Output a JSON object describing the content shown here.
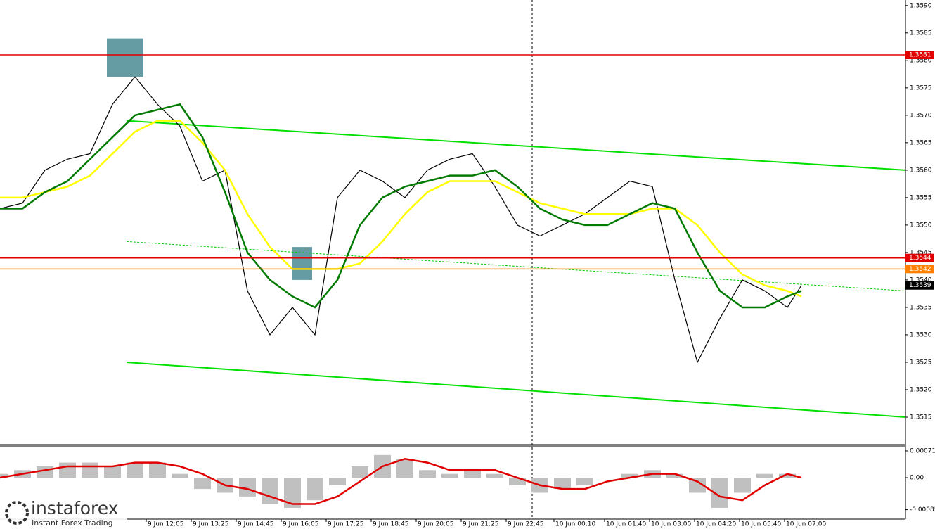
{
  "chart_data": [
    {
      "type": "line",
      "xlim": [
        0,
        322
      ],
      "ylim": [
        1.351,
        1.3591
      ],
      "xticks": [
        {
          "value": 52,
          "label": "9 Jun 12:05"
        },
        {
          "value": 68,
          "label": "9 Jun 13:25"
        },
        {
          "value": 84,
          "label": "9 Jun 14:45"
        },
        {
          "value": 100,
          "label": "9 Jun 16:05"
        },
        {
          "value": 116,
          "label": "9 Jun 17:25"
        },
        {
          "value": 132,
          "label": "9 Jun 18:45"
        },
        {
          "value": 148,
          "label": "9 Jun 20:05"
        },
        {
          "value": 164,
          "label": "9 Jun 21:25"
        },
        {
          "value": 180,
          "label": "9 Jun 22:45"
        },
        {
          "value": 197,
          "label": "10 Jun 00:10"
        },
        {
          "value": 215,
          "label": "10 Jun 01:40"
        },
        {
          "value": 231,
          "label": "10 Jun 03:00"
        },
        {
          "value": 247,
          "label": "10 Jun 04:20"
        },
        {
          "value": 263,
          "label": "10 Jun 05:40"
        },
        {
          "value": 279,
          "label": "10 Jun 07:00"
        }
      ],
      "yticks": [
        1.3515,
        {
          "value": 1.352,
          "label": "1.3520"
        },
        1.3525,
        {
          "value": 1.353,
          "label": "1.3530"
        },
        1.3535,
        {
          "value": 1.354,
          "label": "1.3540"
        },
        1.3545,
        {
          "value": 1.355,
          "label": "1.3550"
        },
        1.3555,
        {
          "value": 1.356,
          "label": "1.3560"
        },
        1.3565,
        {
          "value": 1.357,
          "label": "1.3570"
        },
        1.3575,
        {
          "value": 1.358,
          "label": "1.3580"
        },
        1.3585,
        {
          "value": 1.359,
          "label": "1.3590"
        }
      ],
      "x": [
        0,
        8,
        16,
        24,
        32,
        40,
        48,
        56,
        64,
        72,
        80,
        88,
        96,
        104,
        112,
        120,
        128,
        136,
        144,
        152,
        160,
        168,
        176,
        184,
        192,
        200,
        208,
        216,
        224,
        232,
        240,
        248,
        256,
        264,
        272,
        280,
        285
      ],
      "series": [
        {
          "color": "#000000",
          "values": [
            1.3553,
            1.3554,
            1.356,
            1.3562,
            1.3563,
            1.3572,
            1.3577,
            1.3572,
            1.3568,
            1.3558,
            1.356,
            1.3538,
            1.353,
            1.3535,
            1.353,
            1.3555,
            1.356,
            1.3558,
            1.3555,
            1.356,
            1.3562,
            1.3563,
            1.3557,
            1.355,
            1.3548,
            1.355,
            1.3552,
            1.3555,
            1.3558,
            1.3557,
            1.354,
            1.3525,
            1.3533,
            1.354,
            1.3538,
            1.3535,
            1.3539
          ]
        },
        {
          "color": "#ffff00",
          "values": [
            1.3555,
            1.3555,
            1.3556,
            1.3557,
            1.3559,
            1.3563,
            1.3567,
            1.3569,
            1.3569,
            1.3565,
            1.356,
            1.3552,
            1.3546,
            1.3542,
            1.3542,
            1.3542,
            1.3543,
            1.3547,
            1.3552,
            1.3556,
            1.3558,
            1.3558,
            1.3558,
            1.3556,
            1.3554,
            1.3553,
            1.3552,
            1.3552,
            1.3552,
            1.3553,
            1.3553,
            1.355,
            1.3545,
            1.3541,
            1.3539,
            1.3538,
            1.3537
          ]
        },
        {
          "color": "#007a00",
          "values": [
            1.3553,
            1.3553,
            1.3556,
            1.3558,
            1.3562,
            1.3566,
            1.357,
            1.3571,
            1.3572,
            1.3566,
            1.3556,
            1.3545,
            1.354,
            1.3537,
            1.3535,
            1.354,
            1.355,
            1.3555,
            1.3557,
            1.3558,
            1.3559,
            1.3559,
            1.356,
            1.3557,
            1.3553,
            1.3551,
            1.355,
            1.355,
            1.3552,
            1.3554,
            1.3553,
            1.3545,
            1.3538,
            1.3535,
            1.3535,
            1.3537,
            1.3538
          ]
        }
      ],
      "levels": [
        {
          "value": 1.3581,
          "color": "#e00000"
        },
        {
          "value": 1.3544,
          "color": "#e00000"
        },
        {
          "value": 1.3542,
          "color": "#ff8000"
        },
        {
          "value": 1.3539,
          "color": "#000000"
        }
      ],
      "trendlines": [
        {
          "x": [
            45,
            322
          ],
          "values": [
            1.3569,
            1.356
          ],
          "color": "#00e000"
        },
        {
          "x": [
            45,
            322
          ],
          "values": [
            1.3525,
            1.3515
          ],
          "color": "#00e000"
        },
        {
          "x": [
            45,
            322
          ],
          "values": [
            1.3547,
            1.3538
          ],
          "color": "#00cc00",
          "dash": true
        }
      ],
      "zones": [
        {
          "x": [
            38,
            51
          ],
          "values": [
            1.3584,
            1.3577
          ],
          "color": "#4a8a93"
        },
        {
          "x": [
            104,
            111
          ],
          "values": [
            1.3546,
            1.354
          ],
          "color": "#4a8a93"
        }
      ]
    },
    {
      "type": "bar",
      "xlim": [
        0,
        322
      ],
      "ylim": [
        -0.0011,
        0.00084
      ],
      "yticks": [
        0.00071,
        {
          "value": 0,
          "label": "0.00"
        },
        -0.00085
      ],
      "x": [
        0,
        8,
        16,
        24,
        32,
        40,
        48,
        56,
        64,
        72,
        80,
        88,
        96,
        104,
        112,
        120,
        128,
        136,
        144,
        152,
        160,
        168,
        176,
        184,
        192,
        200,
        208,
        216,
        224,
        232,
        240,
        248,
        256,
        264,
        272,
        280,
        285
      ],
      "series": [
        {
          "color": "#c0c0c0",
          "values": [
            0.0001,
            0.0002,
            0.0003,
            0.0004,
            0.0004,
            0.0003,
            0.0004,
            0.0004,
            0.0001,
            -0.0003,
            -0.0004,
            -0.0005,
            -0.0007,
            -0.0008,
            -0.0006,
            -0.0002,
            0.0003,
            0.0006,
            0.0005,
            0.0002,
            0.0001,
            0.0002,
            0.0001,
            -0.0002,
            -0.0004,
            -0.0003,
            -0.0002,
            0,
            0.0001,
            0.0002,
            0.0001,
            -0.0004,
            -0.0008,
            -0.0004,
            0.0001,
            0.0001,
            0
          ]
        },
        {
          "type": "line",
          "color": "#e00000",
          "values": [
            0,
            0.0001,
            0.0002,
            0.0003,
            0.0003,
            0.0003,
            0.0004,
            0.0004,
            0.0003,
            0.0001,
            -0.0002,
            -0.0003,
            -0.0005,
            -0.0007,
            -0.0007,
            -0.0005,
            -0.0001,
            0.0003,
            0.0005,
            0.0004,
            0.0002,
            0.0002,
            0.0002,
            0,
            -0.0002,
            -0.0003,
            -0.0003,
            -0.0001,
            0,
            0.0001,
            0.0001,
            -0.0001,
            -0.0005,
            -0.0006,
            -0.0002,
            0.0001,
            0
          ]
        }
      ]
    }
  ],
  "brand": {
    "name": "instaforex",
    "tagline": "Instant Forex Trading"
  }
}
